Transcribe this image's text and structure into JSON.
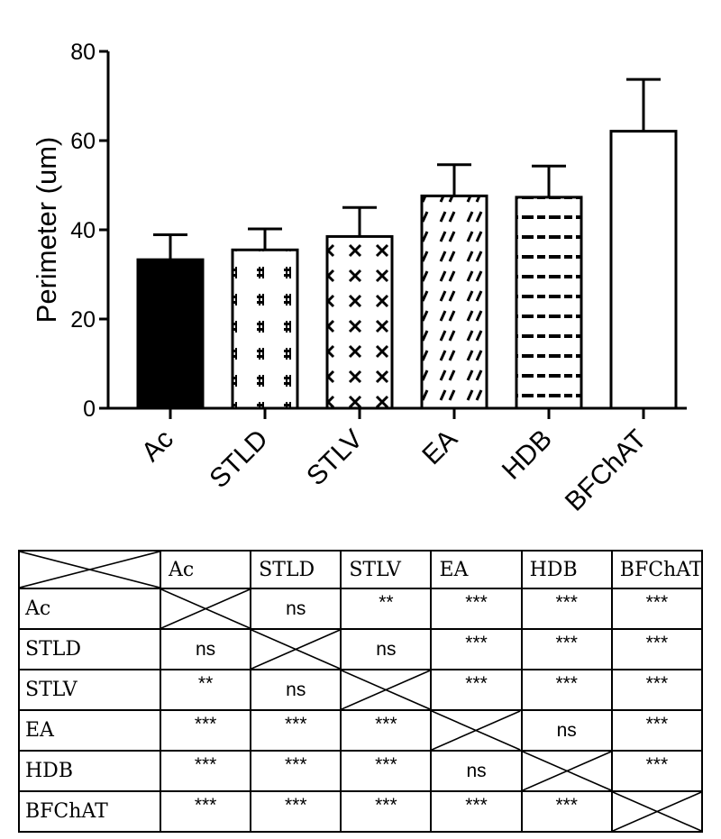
{
  "chart_data": {
    "type": "bar",
    "ylabel": "Perimeter (um)",
    "ylim": [
      0,
      80
    ],
    "yticks": [
      0,
      20,
      40,
      60,
      80
    ],
    "categories": [
      "Ac",
      "STLD",
      "STLV",
      "EA",
      "HDB",
      "BFChAT"
    ],
    "values": [
      33.3,
      35.5,
      38.5,
      47.6,
      47.3,
      62.1
    ],
    "errors": [
      5.6,
      4.7,
      6.5,
      7.0,
      7.0,
      11.6
    ],
    "fills": [
      "solid-black",
      "symbol-pattern",
      "cross-pattern",
      "slash-pattern",
      "dash-pattern",
      "empty"
    ],
    "grid": false,
    "error_bars": "upper only"
  },
  "table": {
    "headers": [
      "Ac",
      "STLD",
      "STLV",
      "EA",
      "HDB",
      "BFChAT"
    ],
    "rows": [
      {
        "label": "Ac",
        "cells": [
          "",
          "ns",
          "**",
          "***",
          "***",
          "***"
        ]
      },
      {
        "label": "STLD",
        "cells": [
          "ns",
          "",
          "ns",
          "***",
          "***",
          "***"
        ]
      },
      {
        "label": "STLV",
        "cells": [
          "**",
          "ns",
          "",
          "***",
          "***",
          "***"
        ]
      },
      {
        "label": "EA",
        "cells": [
          "***",
          "***",
          "***",
          "",
          "ns",
          "***"
        ]
      },
      {
        "label": "HDB",
        "cells": [
          "***",
          "***",
          "***",
          "ns",
          "",
          "***"
        ]
      },
      {
        "label": "BFChAT",
        "cells": [
          "***",
          "***",
          "***",
          "***",
          "***",
          ""
        ]
      }
    ]
  }
}
